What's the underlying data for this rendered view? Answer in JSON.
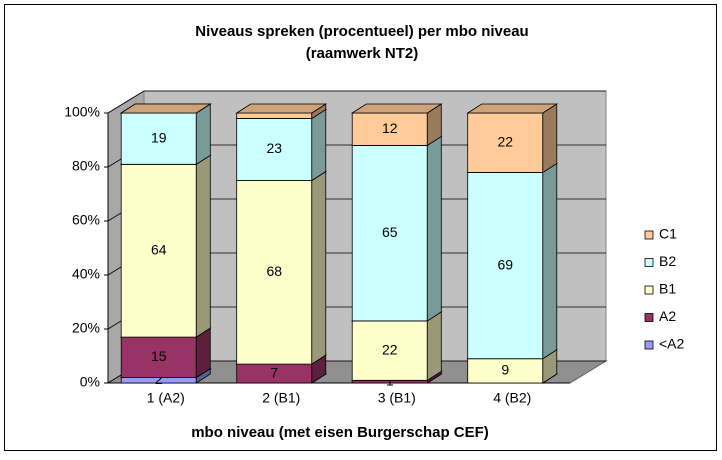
{
  "chart_data": {
    "type": "bar3d_stacked",
    "title": [
      "Niveaus spreken (procentueel) per mbo niveau",
      "(raamwerk NT2)"
    ],
    "x_label": "mbo niveau (met eisen Burgerschap CEF)",
    "categories": [
      "1 (A2)",
      "2 (B1)",
      "3 (B1)",
      "4 (B2)"
    ],
    "series": [
      {
        "name": "<A2",
        "color": "#9999ff",
        "values": [
          2,
          0,
          0,
          0
        ],
        "value_labels": [
          "2",
          null,
          null,
          null
        ]
      },
      {
        "name": "A2",
        "color": "#993366",
        "values": [
          15,
          7,
          1,
          0
        ],
        "value_labels": [
          "15",
          "7",
          "1",
          null
        ]
      },
      {
        "name": "B1",
        "color": "#ffffcc",
        "values": [
          64,
          68,
          22,
          9
        ],
        "value_labels": [
          "64",
          "68",
          "22",
          "9"
        ]
      },
      {
        "name": "B2",
        "color": "#ccffff",
        "values": [
          19,
          23,
          65,
          69
        ],
        "value_labels": [
          "19",
          "23",
          "65",
          "69"
        ]
      },
      {
        "name": "C1",
        "color": "#ffcc99",
        "values": [
          0,
          2,
          12,
          22
        ],
        "value_labels": [
          null,
          null,
          "12",
          "22"
        ]
      }
    ],
    "ylim": [
      0,
      100
    ],
    "yticks": [
      {
        "value": 0,
        "label": "0%"
      },
      {
        "value": 20,
        "label": "20%"
      },
      {
        "value": 40,
        "label": "40%"
      },
      {
        "value": 60,
        "label": "60%"
      },
      {
        "value": 80,
        "label": "80%"
      },
      {
        "value": 100,
        "label": "100%"
      }
    ],
    "grid": true,
    "legend": "right"
  }
}
